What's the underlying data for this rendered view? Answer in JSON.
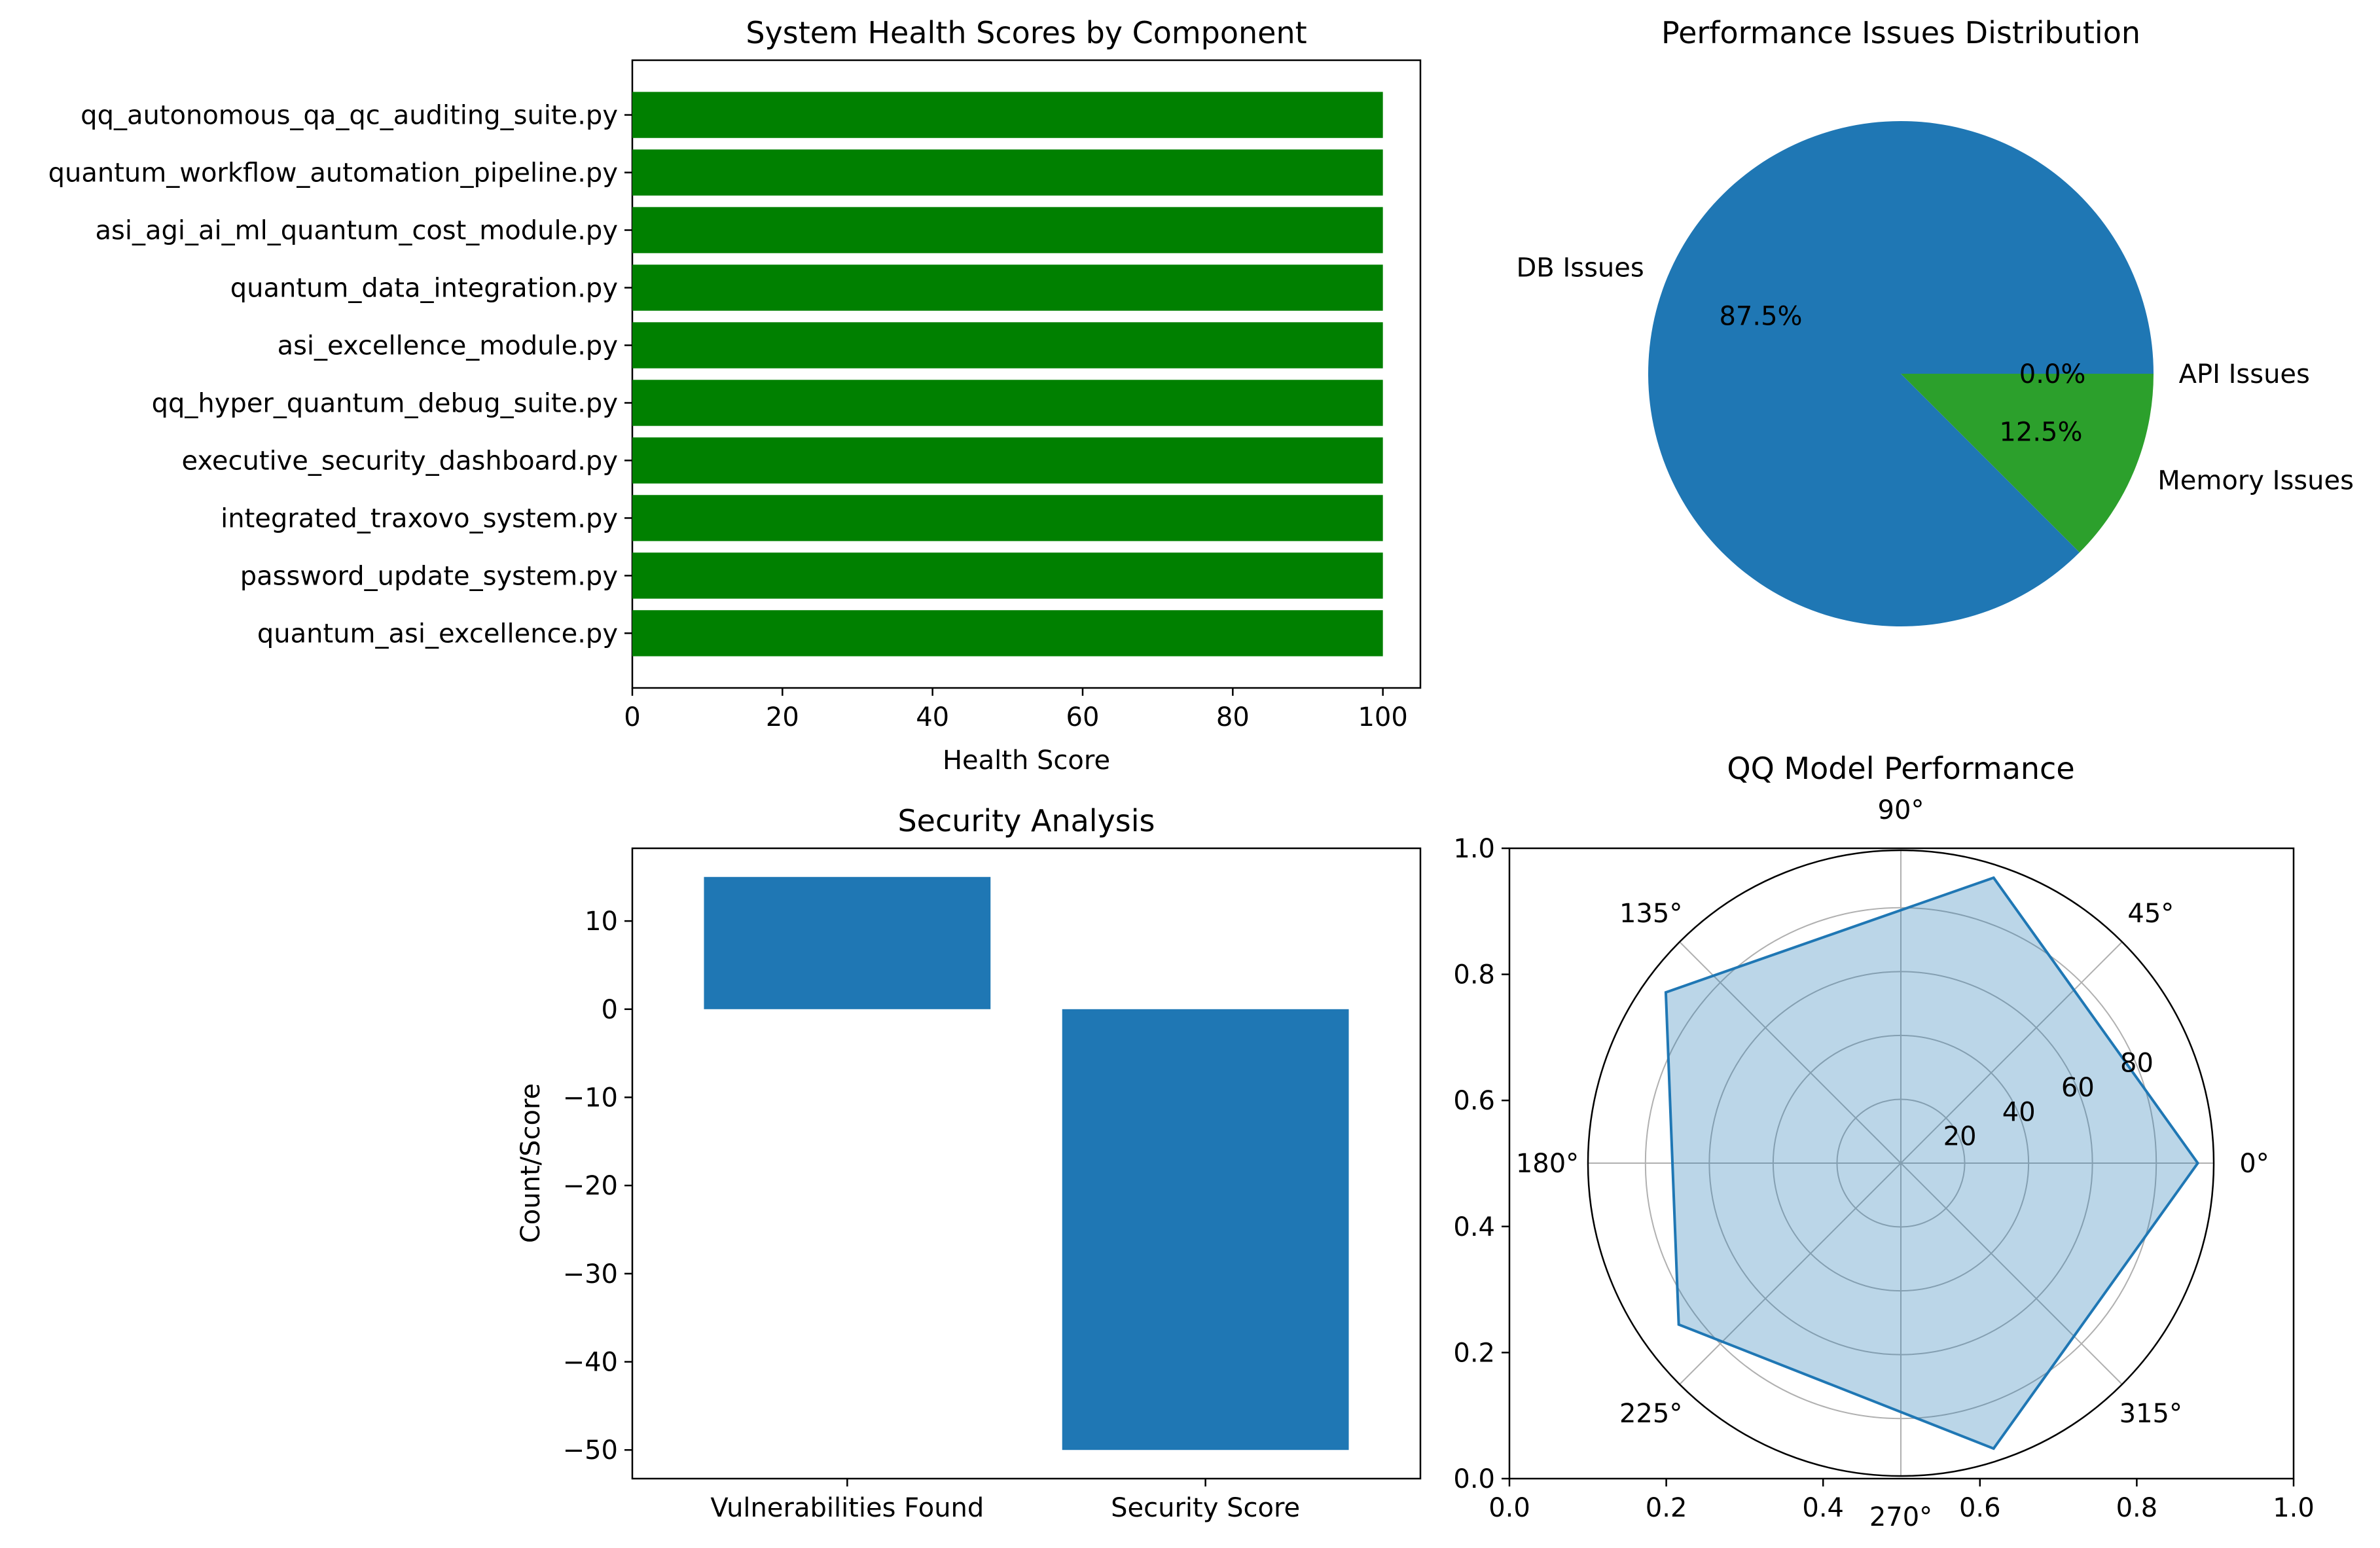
{
  "chart_data": [
    {
      "type": "bar",
      "orientation": "horizontal",
      "title": "System Health Scores by Component",
      "xlabel": "Health Score",
      "ylabel": "",
      "xlim": [
        0,
        105
      ],
      "xticks": [
        "0",
        "20",
        "40",
        "60",
        "80",
        "100"
      ],
      "bar_color": "#008000",
      "categories": [
        "qq_autonomous_qa_qc_auditing_suite.py",
        "quantum_workflow_automation_pipeline.py",
        "asi_agi_ai_ml_quantum_cost_module.py",
        "quantum_data_integration.py",
        "asi_excellence_module.py",
        "qq_hyper_quantum_debug_suite.py",
        "executive_security_dashboard.py",
        "integrated_traxovo_system.py",
        "password_update_system.py",
        "quantum_asi_excellence.py"
      ],
      "values": [
        100,
        100,
        100,
        100,
        100,
        100,
        100,
        100,
        100,
        100
      ]
    },
    {
      "type": "pie",
      "title": "Performance Issues Distribution",
      "labels": [
        "DB Issues",
        "Memory Issues",
        "API Issues"
      ],
      "values": [
        87.5,
        12.5,
        0.0
      ],
      "pct_labels": [
        "87.5%",
        "12.5%",
        "0.0%"
      ],
      "colors": [
        "#1f77b4",
        "#2ca02c",
        "#ff7f0e"
      ]
    },
    {
      "type": "bar",
      "title": "Security Analysis",
      "xlabel": "",
      "ylabel": "Count/Score",
      "categories": [
        "Vulnerabilities Found",
        "Security Score"
      ],
      "values": [
        15,
        -50
      ],
      "ylim": [
        -53.25,
        18.25
      ],
      "yticks": [
        "10",
        "0",
        "−10",
        "−20",
        "−30",
        "−40",
        "−50"
      ],
      "bar_color": "#1f77b4"
    },
    {
      "type": "radar",
      "title": "QQ Model Performance",
      "angle_labels": [
        "0°",
        "45°",
        "90°",
        "135°",
        "180°",
        "225°",
        "270°",
        "315°"
      ],
      "radial_labels": [
        "20",
        "40",
        "60",
        "80"
      ],
      "rmax": 98,
      "series": [
        {
          "theta_deg": [
            0,
            72,
            144,
            216,
            288
          ],
          "values": [
            93,
            94,
            91,
            86,
            94
          ]
        }
      ],
      "line_color": "#1f77b4",
      "fill_color": "#1f77b4",
      "frame_xticks": [
        "0.0",
        "0.2",
        "0.4",
        "0.6",
        "0.8",
        "1.0"
      ],
      "frame_yticks": [
        "0.0",
        "0.2",
        "0.4",
        "0.6",
        "0.8",
        "1.0"
      ]
    }
  ]
}
